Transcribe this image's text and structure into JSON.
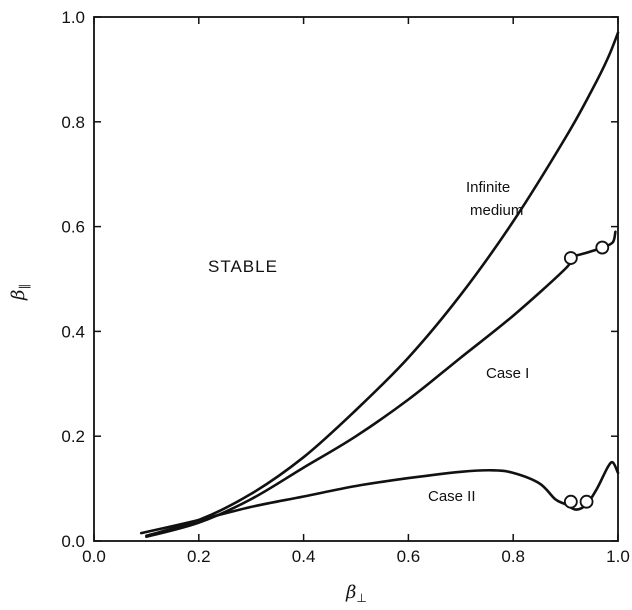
{
  "chart_data": {
    "type": "line",
    "xlabel": "β",
    "xlabel_sub": "⊥",
    "ylabel": "β",
    "ylabel_sub": "∥",
    "xlim": [
      0.0,
      1.0
    ],
    "ylim": [
      0.0,
      1.0
    ],
    "xticks": [
      "0.0",
      "0.2",
      "0.4",
      "0.6",
      "0.8",
      "1.0"
    ],
    "yticks": [
      "0.0",
      "0.2",
      "0.4",
      "0.6",
      "0.8",
      "1.0"
    ],
    "grid": false,
    "region_label": "STABLE",
    "series": [
      {
        "name": "Infinite medium",
        "label_lines": [
          "Infinite",
          "medium"
        ],
        "x": [
          0.1,
          0.2,
          0.3,
          0.4,
          0.5,
          0.6,
          0.7,
          0.8,
          0.9,
          0.95,
          0.98,
          1.0
        ],
        "y": [
          0.01,
          0.04,
          0.09,
          0.16,
          0.25,
          0.35,
          0.47,
          0.61,
          0.77,
          0.86,
          0.92,
          0.97
        ]
      },
      {
        "name": "Case I",
        "label_lines": [
          "Case I"
        ],
        "x": [
          0.1,
          0.2,
          0.3,
          0.4,
          0.5,
          0.6,
          0.7,
          0.8,
          0.9,
          0.91,
          0.94,
          0.97,
          0.99,
          0.995
        ],
        "y": [
          0.008,
          0.035,
          0.08,
          0.14,
          0.2,
          0.27,
          0.35,
          0.43,
          0.52,
          0.54,
          0.55,
          0.56,
          0.57,
          0.59
        ],
        "markers": [
          [
            0.91,
            0.54
          ],
          [
            0.97,
            0.56
          ]
        ]
      },
      {
        "name": "Case II",
        "label_lines": [
          "Case II"
        ],
        "x": [
          0.09,
          0.2,
          0.3,
          0.4,
          0.5,
          0.6,
          0.7,
          0.76,
          0.8,
          0.85,
          0.88,
          0.9,
          0.92,
          0.94,
          0.96,
          0.98,
          0.99,
          1.0
        ],
        "y": [
          0.015,
          0.04,
          0.065,
          0.085,
          0.105,
          0.12,
          0.132,
          0.135,
          0.13,
          0.11,
          0.08,
          0.07,
          0.06,
          0.07,
          0.1,
          0.14,
          0.15,
          0.13
        ],
        "markers": [
          [
            0.91,
            0.075
          ],
          [
            0.94,
            0.075
          ]
        ]
      }
    ]
  }
}
